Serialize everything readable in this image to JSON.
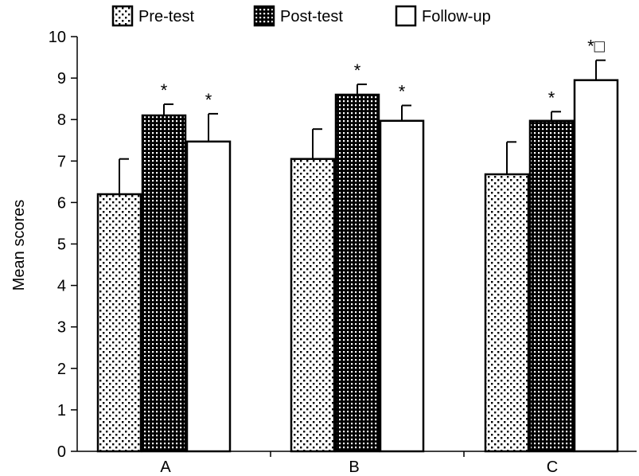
{
  "chart_data": {
    "type": "bar",
    "title": "",
    "xlabel": "",
    "ylabel": "Mean scores",
    "ylim": [
      0,
      10
    ],
    "yticks": [
      0,
      1,
      2,
      3,
      4,
      5,
      6,
      7,
      8,
      9,
      10
    ],
    "categories": [
      "A",
      "B",
      "C"
    ],
    "legend_position": "top",
    "grid": false,
    "series": [
      {
        "name": "Pre-test",
        "pattern": "sparse-dots",
        "values": [
          6.2,
          7.05,
          6.68
        ],
        "error": [
          0.85,
          0.72,
          0.78
        ],
        "annotations": [
          "",
          "",
          ""
        ]
      },
      {
        "name": "Post-test",
        "pattern": "dense-dots",
        "values": [
          8.1,
          8.6,
          7.97
        ],
        "error": [
          0.27,
          0.25,
          0.22
        ],
        "annotations": [
          "*",
          "*",
          "*"
        ]
      },
      {
        "name": "Follow-up",
        "pattern": "solid-white",
        "values": [
          7.47,
          7.97,
          8.95
        ],
        "error": [
          0.67,
          0.37,
          0.48
        ],
        "annotations": [
          "*",
          "*",
          "*□"
        ]
      }
    ]
  }
}
